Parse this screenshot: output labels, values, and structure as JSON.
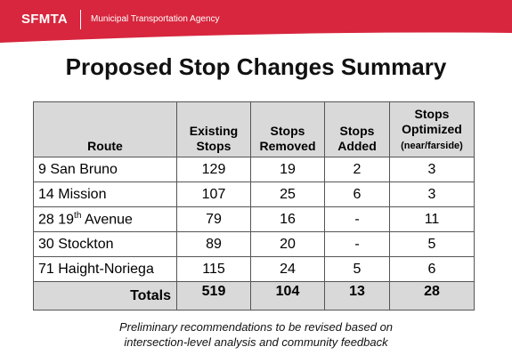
{
  "header": {
    "logo": "SFMTA",
    "agency": "Municipal Transportation Agency",
    "brand_color": "#d7263d"
  },
  "title": "Proposed Stop Changes Summary",
  "table": {
    "columns": [
      {
        "line1": "",
        "line2": "Route"
      },
      {
        "line1": "Existing",
        "line2": "Stops"
      },
      {
        "line1": "Stops",
        "line2": "Removed"
      },
      {
        "line1": "Stops",
        "line2": "Added"
      },
      {
        "line1": "Stops",
        "line2": "Optimized",
        "line3": "(near/farside)"
      }
    ],
    "rows": [
      {
        "route": "9 San Bruno",
        "existing": "129",
        "removed": "19",
        "added": "2",
        "optimized": "3"
      },
      {
        "route": "14 Mission",
        "existing": "107",
        "removed": "25",
        "added": "6",
        "optimized": "3"
      },
      {
        "route_pre": "28 19",
        "route_sup": "th",
        "route_post": " Avenue",
        "existing": "79",
        "removed": "16",
        "added": "-",
        "optimized": "11"
      },
      {
        "route": "30 Stockton",
        "existing": "89",
        "removed": "20",
        "added": "-",
        "optimized": "5"
      },
      {
        "route": "71 Haight-Noriega",
        "existing": "115",
        "removed": "24",
        "added": "5",
        "optimized": "6"
      }
    ],
    "totals": {
      "label": "Totals",
      "existing": "519",
      "removed": "104",
      "added": "13",
      "optimized": "28"
    }
  },
  "footnote": {
    "line1": "Preliminary recommendations to be revised based on",
    "line2": "intersection-level analysis and community feedback"
  }
}
